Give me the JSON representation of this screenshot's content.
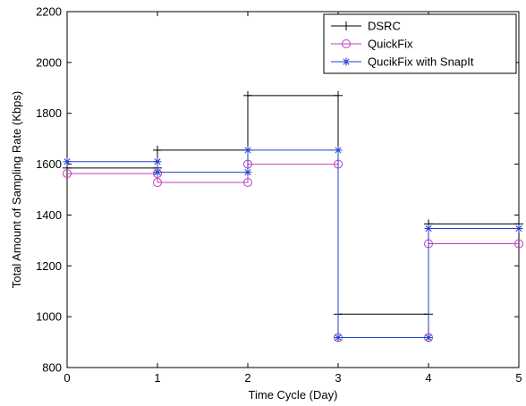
{
  "chart_data": {
    "type": "line",
    "step": "post",
    "xlabel": "Time Cycle (Day)",
    "ylabel": "Total Amount of Sampling Rate (Kbps)",
    "xlim": [
      0,
      5
    ],
    "ylim": [
      800,
      2200
    ],
    "xticks": [
      0,
      1,
      2,
      3,
      4,
      5
    ],
    "yticks": [
      800,
      1000,
      1200,
      1400,
      1600,
      1800,
      2000,
      2200
    ],
    "grid": false,
    "legend_position": "top-right",
    "x": [
      0,
      1,
      2,
      3,
      4,
      5
    ],
    "series": [
      {
        "name": "DSRC",
        "values": [
          1585,
          1655,
          1870,
          1010,
          1365,
          1365
        ],
        "color": "#000000",
        "marker": "plus"
      },
      {
        "name": "QuickFix",
        "values": [
          1563,
          1528,
          1600,
          918,
          1287,
          1287
        ],
        "color": "#bf3fbf",
        "marker": "circle"
      },
      {
        "name": "QucikFix with SnapIt",
        "values": [
          1610,
          1568,
          1655,
          918,
          1347,
          1347
        ],
        "color": "#1f3fd0",
        "marker": "star"
      }
    ]
  }
}
